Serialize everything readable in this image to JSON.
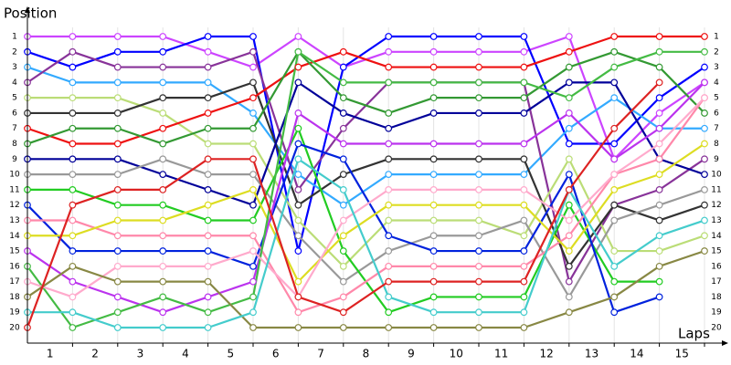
{
  "chart_data": {
    "type": "line",
    "y_title": "Position",
    "x_title": "Laps",
    "ylim": [
      1,
      20
    ],
    "y_inverted": true,
    "yticks": [
      1,
      2,
      3,
      4,
      5,
      6,
      7,
      8,
      9,
      10,
      11,
      12,
      13,
      14,
      15,
      16,
      17,
      18,
      19,
      20
    ],
    "xlim": [
      0,
      15
    ],
    "xticks": [
      1,
      2,
      3,
      4,
      5,
      6,
      7,
      8,
      9,
      10,
      11,
      12,
      13,
      14,
      15
    ],
    "grid": true,
    "series": [
      {
        "color": "#cc44ff",
        "values": [
          1,
          1,
          1,
          1,
          2,
          3,
          1,
          3,
          2,
          2,
          2,
          2,
          1,
          9,
          6,
          4
        ]
      },
      {
        "color": "#0000ff",
        "values": [
          2,
          3,
          2,
          2,
          1,
          1,
          15,
          3,
          1,
          1,
          1,
          1,
          8,
          8,
          5,
          3
        ]
      },
      {
        "color": "#33aaff",
        "values": [
          3,
          4,
          4,
          4,
          4,
          6,
          10,
          12,
          10,
          10,
          10,
          10,
          7,
          5,
          7,
          7
        ]
      },
      {
        "color": "#883399",
        "values": [
          4,
          2,
          3,
          3,
          3,
          2,
          11,
          7,
          4,
          4,
          4,
          4,
          17,
          12,
          11,
          9
        ]
      },
      {
        "color": "#bbdd77",
        "values": [
          5,
          5,
          5,
          6,
          8,
          8,
          13,
          16,
          13,
          13,
          13,
          14,
          9,
          15,
          15,
          14
        ]
      },
      {
        "color": "#333333",
        "values": [
          6,
          6,
          6,
          5,
          5,
          4,
          12,
          10,
          9,
          9,
          9,
          9,
          16,
          12,
          13,
          12
        ]
      },
      {
        "color": "#ee1111",
        "values": [
          7,
          8,
          8,
          7,
          6,
          5,
          3,
          2,
          3,
          3,
          3,
          3,
          2,
          1,
          1,
          1
        ]
      },
      {
        "color": "#339933",
        "values": [
          8,
          7,
          7,
          8,
          7,
          7,
          2,
          5,
          6,
          5,
          5,
          5,
          3,
          2,
          3,
          6
        ]
      },
      {
        "color": "#000099",
        "values": [
          9,
          9,
          9,
          10,
          11,
          12,
          4,
          6,
          7,
          6,
          6,
          6,
          4,
          4,
          9,
          10
        ]
      },
      {
        "color": "#999999",
        "values": [
          10,
          10,
          10,
          9,
          10,
          10,
          14,
          17,
          15,
          14,
          14,
          13,
          18,
          13,
          12,
          11
        ]
      },
      {
        "color": "#22cc22",
        "values": [
          11,
          11,
          12,
          12,
          13,
          13,
          7,
          15,
          19,
          18,
          18,
          18,
          12,
          17,
          17,
          null
        ]
      },
      {
        "color": "#0022dd",
        "values": [
          12,
          15,
          15,
          15,
          15,
          16,
          8,
          9,
          14,
          15,
          15,
          15,
          10,
          19,
          18,
          null
        ]
      },
      {
        "color": "#ff88aa",
        "values": [
          13,
          13,
          14,
          14,
          14,
          14,
          19,
          18,
          16,
          16,
          16,
          16,
          14,
          10,
          9,
          5
        ]
      },
      {
        "color": "#dddd22",
        "values": [
          14,
          14,
          13,
          13,
          12,
          11,
          17,
          14,
          12,
          12,
          12,
          12,
          15,
          11,
          10,
          8
        ]
      },
      {
        "color": "#bb33ee",
        "values": [
          15,
          17,
          18,
          19,
          18,
          17,
          6,
          8,
          8,
          8,
          8,
          8,
          6,
          9,
          7,
          4
        ]
      },
      {
        "color": "#44bb44",
        "values": [
          16,
          20,
          19,
          18,
          19,
          18,
          2,
          4,
          4,
          4,
          4,
          4,
          5,
          3,
          2,
          2
        ]
      },
      {
        "color": "#ffaacc",
        "values": [
          17,
          18,
          16,
          16,
          16,
          15,
          18,
          13,
          11,
          11,
          11,
          11,
          13,
          10,
          8,
          5
        ]
      },
      {
        "color": "#888844",
        "values": [
          18,
          16,
          17,
          17,
          17,
          20,
          20,
          20,
          20,
          20,
          20,
          20,
          19,
          18,
          16,
          15
        ]
      },
      {
        "color": "#44cccc",
        "values": [
          19,
          19,
          20,
          20,
          20,
          19,
          9,
          11,
          18,
          19,
          19,
          19,
          11,
          16,
          14,
          13
        ]
      },
      {
        "color": "#dd2222",
        "values": [
          20,
          12,
          11,
          11,
          9,
          9,
          18,
          19,
          17,
          17,
          17,
          17,
          11,
          7,
          4,
          null
        ]
      }
    ]
  }
}
